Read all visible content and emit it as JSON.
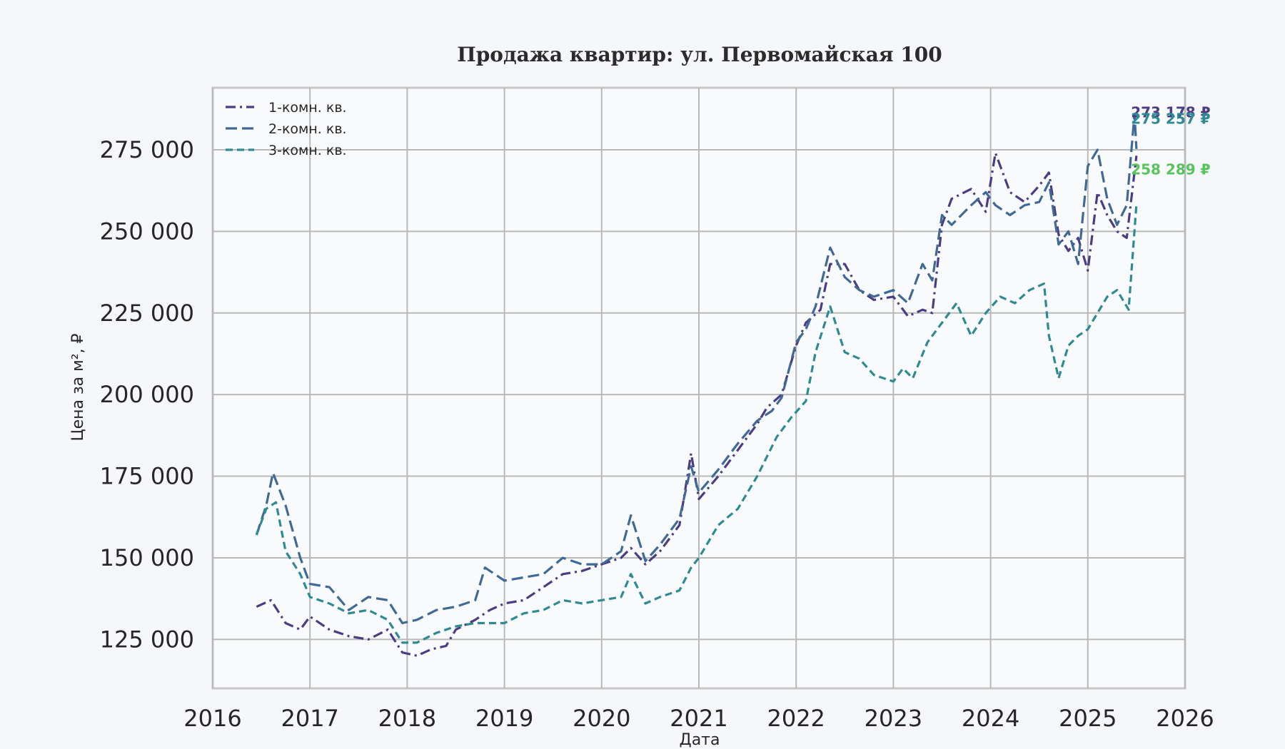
{
  "chart_data": {
    "type": "line",
    "title": "Продажа квартир: ул. Первомайская 100",
    "xlabel": "Дата",
    "ylabel": "Цена за м², ₽",
    "xlim": [
      2016.0,
      2026.0
    ],
    "ylim": [
      110000,
      294000
    ],
    "x_ticks": [
      "2016",
      "2017",
      "2018",
      "2019",
      "2020",
      "2021",
      "2022",
      "2023",
      "2024",
      "2025",
      "2026"
    ],
    "y_ticks": [
      {
        "value": 125000,
        "label": "125 000"
      },
      {
        "value": 150000,
        "label": "150 000"
      },
      {
        "value": 175000,
        "label": "175 000"
      },
      {
        "value": 200000,
        "label": "200 000"
      },
      {
        "value": 225000,
        "label": "225 000"
      },
      {
        "value": 250000,
        "label": "250 000"
      },
      {
        "value": 275000,
        "label": "275 000"
      }
    ],
    "grid": true,
    "legend_position": "top-left",
    "series": [
      {
        "name": "1-комн. кв.",
        "color": "#4b3d84",
        "dash": "dashdot",
        "x": [
          2016.45,
          2016.6,
          2016.75,
          2016.9,
          2017.0,
          2017.2,
          2017.4,
          2017.6,
          2017.8,
          2017.95,
          2018.1,
          2018.25,
          2018.4,
          2018.5,
          2018.7,
          2018.85,
          2019.0,
          2019.2,
          2019.4,
          2019.6,
          2019.8,
          2020.0,
          2020.2,
          2020.3,
          2020.45,
          2020.6,
          2020.8,
          2020.92,
          2021.0,
          2021.2,
          2021.4,
          2021.6,
          2021.7,
          2021.85,
          2022.0,
          2022.1,
          2022.25,
          2022.35,
          2022.5,
          2022.65,
          2022.8,
          2023.0,
          2023.15,
          2023.3,
          2023.4,
          2023.5,
          2023.6,
          2023.8,
          2023.95,
          2024.05,
          2024.2,
          2024.35,
          2024.5,
          2024.6,
          2024.7,
          2024.8,
          2024.9,
          2025.0,
          2025.1,
          2025.2,
          2025.3,
          2025.4,
          2025.5
        ],
        "y": [
          135000,
          137000,
          130000,
          128000,
          132000,
          128000,
          126000,
          125000,
          128000,
          121000,
          120000,
          122000,
          123000,
          128000,
          131000,
          134000,
          136000,
          137000,
          141000,
          145000,
          146000,
          148000,
          150000,
          153000,
          148000,
          152000,
          160000,
          182000,
          168000,
          175000,
          183000,
          191000,
          196000,
          200000,
          215000,
          222000,
          226000,
          240000,
          240000,
          232000,
          229000,
          230000,
          224000,
          226000,
          225000,
          252000,
          260000,
          263000,
          256000,
          274000,
          262000,
          259000,
          264000,
          268000,
          249000,
          244000,
          248000,
          238000,
          262000,
          255000,
          250000,
          248000,
          273178
        ]
      },
      {
        "name": "2-комн. кв.",
        "color": "#3f6a96",
        "dash": "dash-long",
        "x": [
          2016.45,
          2016.55,
          2016.62,
          2016.75,
          2016.9,
          2017.0,
          2017.2,
          2017.4,
          2017.6,
          2017.8,
          2017.95,
          2018.1,
          2018.3,
          2018.5,
          2018.7,
          2018.8,
          2019.0,
          2019.2,
          2019.4,
          2019.6,
          2019.8,
          2020.0,
          2020.2,
          2020.3,
          2020.45,
          2020.6,
          2020.8,
          2020.92,
          2021.0,
          2021.2,
          2021.4,
          2021.6,
          2021.75,
          2021.85,
          2022.0,
          2022.1,
          2022.2,
          2022.35,
          2022.5,
          2022.65,
          2022.8,
          2023.0,
          2023.15,
          2023.3,
          2023.4,
          2023.5,
          2023.6,
          2023.8,
          2023.95,
          2024.05,
          2024.2,
          2024.35,
          2024.5,
          2024.6,
          2024.7,
          2024.8,
          2024.9,
          2025.0,
          2025.1,
          2025.2,
          2025.3,
          2025.4,
          2025.48,
          2025.5
        ],
        "y": [
          157000,
          166000,
          176000,
          166000,
          150000,
          142000,
          141000,
          134000,
          138000,
          137000,
          130000,
          131000,
          134000,
          135000,
          137000,
          147000,
          143000,
          144000,
          145000,
          150000,
          148000,
          148000,
          152000,
          163000,
          149000,
          154000,
          162000,
          178000,
          170000,
          177000,
          185000,
          192000,
          195000,
          199000,
          216000,
          220000,
          227000,
          245000,
          236000,
          232000,
          230000,
          232000,
          228000,
          240000,
          235000,
          255000,
          252000,
          258000,
          262000,
          258000,
          255000,
          258000,
          259000,
          265000,
          246000,
          250000,
          240000,
          270000,
          275000,
          260000,
          252000,
          258000,
          286000,
          275257
        ]
      },
      {
        "name": "3-комн. кв.",
        "color": "#2e8a93",
        "dash": "dash",
        "x": [
          2016.45,
          2016.55,
          2016.65,
          2016.75,
          2016.9,
          2017.0,
          2017.2,
          2017.4,
          2017.6,
          2017.8,
          2017.95,
          2018.1,
          2018.3,
          2018.5,
          2018.7,
          2018.9,
          2019.0,
          2019.2,
          2019.4,
          2019.6,
          2019.8,
          2020.0,
          2020.2,
          2020.3,
          2020.45,
          2020.6,
          2020.8,
          2020.92,
          2021.0,
          2021.2,
          2021.4,
          2021.6,
          2021.8,
          2021.95,
          2022.1,
          2022.2,
          2022.35,
          2022.5,
          2022.65,
          2022.8,
          2023.0,
          2023.1,
          2023.2,
          2023.35,
          2023.5,
          2023.65,
          2023.8,
          2023.95,
          2024.1,
          2024.25,
          2024.4,
          2024.55,
          2024.6,
          2024.7,
          2024.8,
          2024.9,
          2025.0,
          2025.1,
          2025.2,
          2025.3,
          2025.42,
          2025.5
        ],
        "y": [
          157000,
          165000,
          167000,
          152000,
          145000,
          138000,
          136000,
          133000,
          134000,
          131000,
          124000,
          124000,
          127000,
          129000,
          130000,
          130000,
          130000,
          133000,
          134000,
          137000,
          136000,
          137000,
          138000,
          145000,
          136000,
          138000,
          140000,
          147000,
          150000,
          160000,
          165000,
          175000,
          187000,
          193000,
          198000,
          213000,
          227000,
          213000,
          211000,
          206000,
          204000,
          208000,
          205000,
          216000,
          222000,
          228000,
          218000,
          225000,
          230000,
          228000,
          232000,
          234000,
          218000,
          205000,
          215000,
          218000,
          220000,
          225000,
          230000,
          232000,
          226000,
          258289
        ]
      }
    ],
    "end_labels": [
      {
        "text": "273 178 ₽",
        "color": "#4b3d84"
      },
      {
        "text": "275 257 ₽",
        "color": "#2e8a93"
      },
      {
        "text": "258 289 ₽",
        "color": "#59c35e"
      }
    ]
  }
}
